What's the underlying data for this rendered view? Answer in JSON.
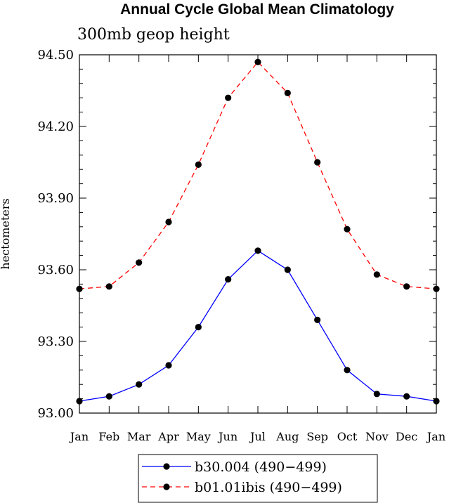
{
  "chart_data": {
    "type": "line",
    "title": "Annual Cycle Global Mean Climatology",
    "subtitle": "300mb geop height",
    "xlabel": "",
    "ylabel": "hectometers",
    "categories": [
      "Jan",
      "Feb",
      "Mar",
      "Apr",
      "May",
      "Jun",
      "Jul",
      "Aug",
      "Sep",
      "Oct",
      "Nov",
      "Dec",
      "Jan"
    ],
    "ylim": [
      93.0,
      94.5
    ],
    "yticks": [
      "93.00",
      "93.30",
      "93.60",
      "93.90",
      "94.20",
      "94.50"
    ],
    "series": [
      {
        "name": "b30.004 (490−499)",
        "color": "#0000ff",
        "dash": "solid",
        "values": [
          93.05,
          93.07,
          93.12,
          93.2,
          93.36,
          93.56,
          93.68,
          93.6,
          93.39,
          93.18,
          93.08,
          93.07,
          93.05
        ]
      },
      {
        "name": "b01.01ibis (490−499)",
        "color": "#ff0000",
        "dash": "dashed",
        "values": [
          93.52,
          93.53,
          93.63,
          93.8,
          94.04,
          94.32,
          94.47,
          94.34,
          94.05,
          93.77,
          93.58,
          93.53,
          93.52
        ]
      }
    ]
  }
}
